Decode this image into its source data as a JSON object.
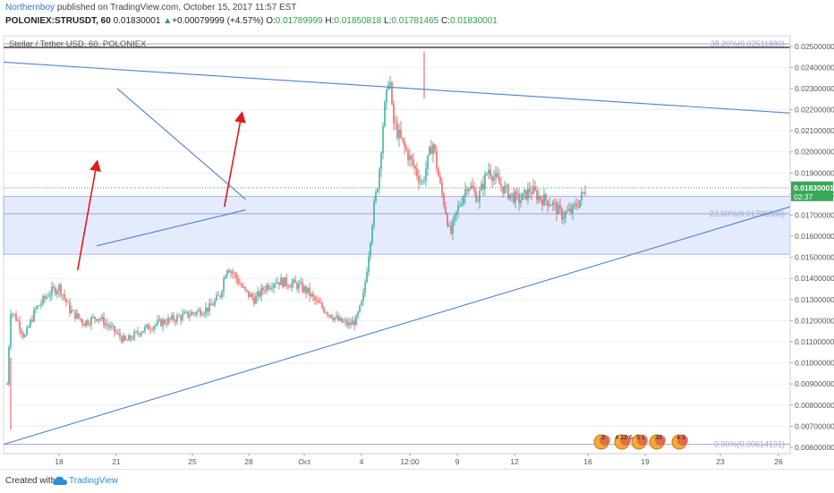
{
  "header": {
    "author": "Northernboy",
    "published": "published on TradingView.com, October 15, 2017 11:57 EST",
    "symbol": "POLONIEX:STRUSDT, 60",
    "last": "0.01830001",
    "arrow": "▲",
    "change": "+0.00079999 (+4.57%)",
    "o_label": "O:",
    "o_value": "0.01789999",
    "h_label": "H:",
    "h_value": "0.01850818",
    "l_label": "L:",
    "l_value": "0.01781465",
    "c_label": "C:",
    "c_value": "0.01830001"
  },
  "footer": {
    "created": "Created with",
    "brand": "TradingView"
  },
  "colors": {
    "up": "#26a69a",
    "down": "#ef5350",
    "trend": "#4f7fd0",
    "arrow": "#e01b1b",
    "zone": "#dbe4fb",
    "fib": "#a2a4d4",
    "price_tag": "#3aa757"
  },
  "chart_data": {
    "type": "candlestick",
    "title": "Stellar / Tether USD, 60, POLONIEX",
    "y_range": [
      0.0057,
      0.0255
    ],
    "y_ticks": [
      "0.02500000",
      "0.02400000",
      "0.02300000",
      "0.02200000",
      "0.02100000",
      "0.02000000",
      "0.01900000",
      "0.01800000",
      "0.01700000",
      "0.01600000",
      "0.01500000",
      "0.01400000",
      "0.01300000",
      "0.01200000",
      "0.01100000",
      "0.01000000",
      "0.00900000",
      "0.00800000",
      "0.00700000",
      "0.00600000"
    ],
    "y_tick_values": [
      0.025,
      0.024,
      0.023,
      0.022,
      0.021,
      0.02,
      0.019,
      0.018,
      0.017,
      0.016,
      0.015,
      0.014,
      0.013,
      0.012,
      0.011,
      0.01,
      0.009,
      0.008,
      0.007,
      0.006
    ],
    "x_range": [
      15.7,
      26.4
    ],
    "x_ticks": [
      {
        "label": "18",
        "x": 18
      },
      {
        "label": "21",
        "x": 21
      },
      {
        "label": "25",
        "x": 25
      },
      {
        "label": "28",
        "x": 28
      },
      {
        "label": "Oct",
        "x": 31
      },
      {
        "label": "4",
        "x": 34
      },
      {
        "label": "12:00",
        "x": 35.5
      },
      {
        "label": "9",
        "x": 38
      },
      {
        "label": "12",
        "x": 40
      },
      {
        "label": "16",
        "x": 42.6
      },
      {
        "label": "19",
        "x": 44.8
      },
      {
        "label": "23",
        "x": 47.8
      },
      {
        "label": "26",
        "x": 49.9
      }
    ],
    "x_tick_positions_note": "",
    "last_price": "0.01830001",
    "countdown": "02:37",
    "fib_levels": [
      {
        "label": "38.20%(0.02511880)",
        "value": 0.0251188
      },
      {
        "label": "23.60%(0.01706586)",
        "value": 0.01706586
      },
      {
        "label": "0.00%(0.00614191)",
        "value": 0.00614191
      }
    ],
    "zone": [
      0.01515,
      0.0179
    ],
    "price_path": [
      [
        0,
        0.009
      ],
      [
        0.02,
        0.0062
      ],
      [
        0.05,
        0.0108
      ],
      [
        0.1,
        0.0125
      ],
      [
        0.3,
        0.012
      ],
      [
        0.5,
        0.0112
      ],
      [
        0.8,
        0.0125
      ],
      [
        1.2,
        0.0133
      ],
      [
        1.5,
        0.0136
      ],
      [
        1.8,
        0.0125
      ],
      [
        2.2,
        0.0119
      ],
      [
        2.6,
        0.0122
      ],
      [
        3.0,
        0.0116
      ],
      [
        3.4,
        0.011
      ],
      [
        3.8,
        0.0115
      ],
      [
        4.2,
        0.0118
      ],
      [
        4.6,
        0.012
      ],
      [
        5.0,
        0.0122
      ],
      [
        5.4,
        0.0124
      ],
      [
        5.8,
        0.0126
      ],
      [
        6.1,
        0.0132
      ],
      [
        6.3,
        0.0146
      ],
      [
        6.5,
        0.0142
      ],
      [
        6.8,
        0.0134
      ],
      [
        7.1,
        0.013
      ],
      [
        7.4,
        0.0136
      ],
      [
        7.7,
        0.0139
      ],
      [
        8.0,
        0.0138
      ],
      [
        8.3,
        0.0137
      ],
      [
        8.6,
        0.0134
      ],
      [
        8.9,
        0.0128
      ],
      [
        9.2,
        0.0124
      ],
      [
        9.5,
        0.012
      ],
      [
        9.8,
        0.0118
      ],
      [
        10.0,
        0.012
      ],
      [
        10.2,
        0.013
      ],
      [
        10.35,
        0.015
      ],
      [
        10.5,
        0.0172
      ],
      [
        10.65,
        0.0188
      ],
      [
        10.8,
        0.0218
      ],
      [
        10.9,
        0.0228
      ],
      [
        10.95,
        0.024
      ],
      [
        11.05,
        0.0215
      ],
      [
        11.3,
        0.0205
      ],
      [
        11.6,
        0.0195
      ],
      [
        11.9,
        0.0185
      ],
      [
        12.2,
        0.0205
      ],
      [
        12.4,
        0.0185
      ],
      [
        12.6,
        0.017
      ],
      [
        12.7,
        0.016
      ],
      [
        12.9,
        0.0172
      ],
      [
        13.2,
        0.0185
      ],
      [
        13.5,
        0.0178
      ],
      [
        13.8,
        0.0192
      ],
      [
        14.1,
        0.0185
      ],
      [
        14.4,
        0.018
      ],
      [
        14.7,
        0.0177
      ],
      [
        15.0,
        0.0182
      ],
      [
        15.3,
        0.0178
      ],
      [
        15.6,
        0.0176
      ],
      [
        15.9,
        0.017
      ],
      [
        16.2,
        0.0172
      ],
      [
        16.45,
        0.0178
      ],
      [
        16.6,
        0.0183
      ]
    ],
    "trendlines": [
      {
        "from": [
          15.72,
          0.02425
        ],
        "to": [
          26.4,
          0.02184
        ]
      },
      {
        "from": [
          15.72,
          0.00614
        ],
        "to": [
          26.4,
          0.0174
        ]
      },
      {
        "from": [
          36.35,
          0.023
        ],
        "to": [
          43.0,
          0.01775
        ]
      },
      {
        "from": [
          35.3,
          0.01555
        ],
        "to": [
          43.0,
          0.01725
        ]
      }
    ],
    "arrows": [
      {
        "from": [
          34.3,
          0.0144
        ],
        "to": [
          35.3,
          0.0195
        ]
      },
      {
        "from": [
          41.9,
          0.0174
        ],
        "to": [
          42.8,
          0.0218
        ]
      }
    ],
    "event_badges": [
      "3",
      "4 12 6",
      "5 1",
      "33",
      "4 3"
    ]
  }
}
